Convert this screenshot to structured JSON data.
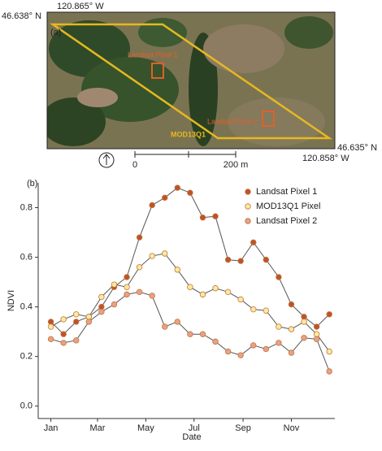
{
  "map": {
    "panel": "(a)",
    "top_left_lon": "120.865° W",
    "top_left_lat": "46.638° N",
    "bottom_right_lat": "46.635° N",
    "bottom_right_lon": "120.858° W",
    "pixel1": "Landsat Pixel 1",
    "pixel2": "Landsat Pixel 2",
    "modis": "MOD13Q1",
    "scale_start": "0",
    "scale_end": "200 m"
  },
  "chart_data": {
    "type": "line",
    "panel": "(b)",
    "x_label": "Date",
    "y_label": "NDVI",
    "x": [
      1,
      17,
      33,
      49,
      65,
      81,
      97,
      113,
      129,
      145,
      161,
      177,
      193,
      209,
      225,
      241,
      257,
      273,
      289,
      305,
      321,
      337,
      353
    ],
    "xlim": [
      -15,
      360
    ],
    "xticks": [
      {
        "value": 1,
        "label": "Jan"
      },
      {
        "value": 60,
        "label": "Mar"
      },
      {
        "value": 121,
        "label": "May"
      },
      {
        "value": 182,
        "label": "Jul"
      },
      {
        "value": 244,
        "label": "Sep"
      },
      {
        "value": 305,
        "label": "Nov"
      }
    ],
    "ylim": [
      -0.05,
      0.9
    ],
    "yticks": [
      {
        "value": 0,
        "label": "0.0"
      },
      0.2,
      0.4,
      0.6,
      0.8
    ],
    "legend": "upper right",
    "line_color": "#555555",
    "series": [
      {
        "name": "Landsat Pixel 1",
        "color": "#c0522a",
        "values": [
          0.34,
          0.29,
          0.34,
          0.36,
          0.4,
          0.48,
          0.52,
          0.68,
          0.81,
          0.84,
          0.88,
          0.86,
          0.76,
          0.765,
          0.59,
          0.585,
          0.66,
          0.59,
          0.52,
          0.41,
          0.36,
          0.32,
          0.37
        ]
      },
      {
        "name": "MOD13Q1 Pixel",
        "color": "#fbe9a0",
        "values": [
          0.32,
          0.35,
          0.37,
          0.36,
          0.44,
          0.49,
          0.48,
          0.56,
          0.605,
          0.615,
          0.55,
          0.48,
          0.45,
          0.475,
          0.46,
          0.43,
          0.39,
          0.385,
          0.32,
          0.31,
          0.34,
          0.29,
          0.22
        ]
      },
      {
        "name": "Landsat Pixel 2",
        "color": "#e8a08a",
        "values": [
          0.27,
          0.255,
          0.265,
          0.34,
          0.38,
          0.41,
          0.45,
          0.46,
          0.445,
          0.32,
          0.34,
          0.29,
          0.29,
          0.26,
          0.22,
          0.205,
          0.245,
          0.23,
          0.255,
          0.215,
          0.275,
          0.27,
          0.14
        ]
      }
    ]
  }
}
